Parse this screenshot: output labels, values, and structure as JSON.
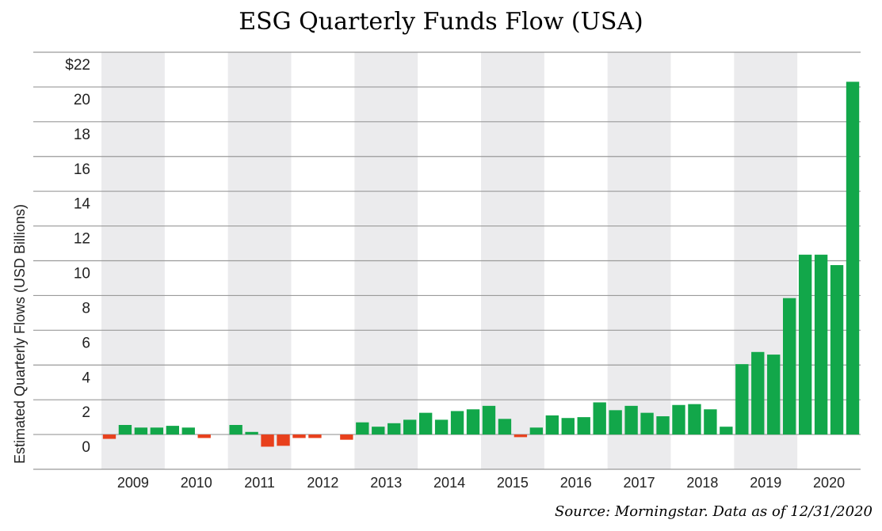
{
  "title": "ESG Quarterly Funds Flow (USA)",
  "source": "Source: Morningstar. Data as of 12/31/2020",
  "colors": {
    "positive": "#12a74a",
    "negative": "#e8401c",
    "band": "#ebebed",
    "grid": "#9a9a9a"
  },
  "chart_data": {
    "type": "bar",
    "ylabel": "Estimated Quarterly Flows (USD Billions)",
    "xlabel": "",
    "ylim": [
      -2,
      22
    ],
    "yticks": [
      0,
      2,
      4,
      6,
      8,
      10,
      12,
      14,
      16,
      18,
      20,
      22
    ],
    "ytick_labels": [
      "0",
      "2",
      "4",
      "6",
      "8",
      "10",
      "12",
      "14",
      "16",
      "18",
      "20",
      "$22"
    ],
    "years": [
      "2009",
      "2010",
      "2011",
      "2012",
      "2013",
      "2014",
      "2015",
      "2016",
      "2017",
      "2018",
      "2019",
      "2020"
    ],
    "shaded_years": [
      "2009",
      "2011",
      "2013",
      "2015",
      "2017",
      "2019"
    ],
    "quarters_per_year": 4,
    "values": [
      -0.25,
      0.55,
      0.4,
      0.4,
      0.5,
      0.4,
      -0.2,
      0.0,
      0.55,
      0.15,
      -0.7,
      -0.65,
      -0.2,
      -0.2,
      0.0,
      -0.3,
      0.7,
      0.45,
      0.65,
      0.85,
      1.25,
      0.85,
      1.35,
      1.45,
      1.65,
      0.9,
      -0.15,
      0.4,
      1.1,
      0.95,
      1.0,
      1.85,
      1.4,
      1.65,
      1.25,
      1.05,
      1.7,
      1.75,
      1.45,
      0.45,
      4.05,
      4.75,
      4.6,
      7.85,
      10.35,
      10.35,
      9.75,
      20.3
    ],
    "grid": true,
    "legend": "none"
  }
}
